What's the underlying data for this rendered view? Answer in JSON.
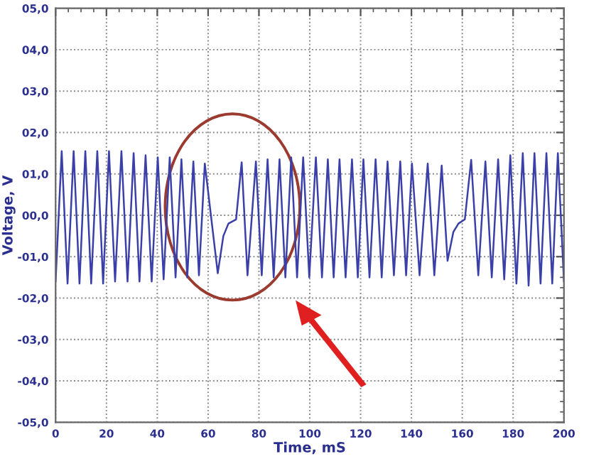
{
  "chart_data": {
    "type": "line",
    "xlabel": "Time, mS",
    "ylabel": "Voltage, V",
    "xlim": [
      0,
      200
    ],
    "ylim": [
      -5,
      5
    ],
    "xticks": [
      0,
      20,
      40,
      60,
      80,
      100,
      120,
      140,
      160,
      180,
      200
    ],
    "yticks": [
      {
        "value": -5,
        "label": "-05,0"
      },
      {
        "value": -4,
        "label": "-04,0"
      },
      {
        "value": -3,
        "label": "-03,0"
      },
      {
        "value": -2,
        "label": "-02,0"
      },
      {
        "value": -1,
        "label": "-01,0"
      },
      {
        "value": 0,
        "label": "00,0"
      },
      {
        "value": 1,
        "label": "01,0"
      },
      {
        "value": 2,
        "label": "02,0"
      },
      {
        "value": 3,
        "label": "03,0"
      },
      {
        "value": 4,
        "label": "04,0"
      },
      {
        "value": 5,
        "label": "05,0"
      }
    ],
    "grid": true,
    "marker": "none",
    "line_style": "solid",
    "series": [
      {
        "color": "#3a40a8",
        "x": [
          0,
          2.4,
          4.7,
          7.1,
          9.4,
          11.7,
          14.0,
          16.4,
          18.7,
          21.0,
          23.4,
          25.9,
          28.3,
          30.7,
          33.0,
          35.4,
          37.8,
          40.2,
          42.5,
          44.9,
          47.2,
          49.5,
          51.8,
          54.2,
          56.4,
          58.7,
          63.8,
          66.0,
          68.0,
          71.0,
          73.2,
          75.5,
          78.8,
          81.1,
          83.4,
          85.8,
          88.1,
          90.4,
          92.7,
          95.0,
          97.4,
          99.8,
          102.4,
          104.8,
          107.1,
          109.4,
          111.7,
          114.1,
          116.6,
          118.9,
          121.1,
          123.5,
          125.9,
          128.3,
          130.6,
          133.1,
          135.6,
          137.9,
          140.2,
          143.2,
          146.4,
          149.0,
          151.9,
          154.2,
          156.5,
          158.5,
          161.0,
          163.5,
          166.3,
          169.1,
          171.6,
          174.1,
          176.5,
          178.9,
          181.3,
          183.8,
          186.1,
          188.4,
          190.8,
          193.1,
          195.4,
          197.6,
          200
        ],
        "values": [
          -1.6,
          1.55,
          -1.65,
          1.55,
          -1.65,
          1.55,
          -1.65,
          1.55,
          -1.65,
          1.55,
          -1.6,
          1.55,
          -1.6,
          1.5,
          -1.6,
          1.45,
          -1.6,
          1.4,
          -1.55,
          1.4,
          -1.5,
          1.35,
          -1.5,
          1.3,
          -1.45,
          1.25,
          -1.4,
          -0.5,
          -0.2,
          -0.1,
          1.28,
          -1.45,
          1.3,
          -1.45,
          1.35,
          -1.5,
          1.35,
          -1.5,
          1.4,
          -1.5,
          1.4,
          -1.5,
          1.4,
          -1.5,
          1.35,
          -1.5,
          1.35,
          -1.5,
          1.35,
          -1.5,
          1.35,
          -1.5,
          1.35,
          -1.5,
          1.3,
          -1.45,
          1.3,
          -1.45,
          1.25,
          -1.45,
          1.25,
          -1.45,
          1.2,
          -1.1,
          -0.4,
          -0.2,
          -0.1,
          1.34,
          -1.45,
          1.3,
          -1.5,
          1.35,
          -1.55,
          1.45,
          -1.65,
          1.5,
          -1.7,
          1.5,
          -1.65,
          1.5,
          -1.65,
          1.5,
          -1.6
        ]
      }
    ]
  }
}
